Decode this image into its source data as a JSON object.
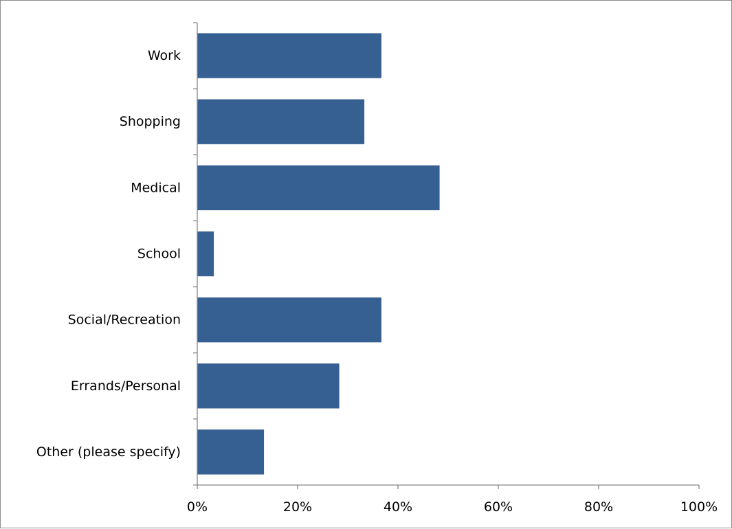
{
  "chart_data": {
    "type": "bar",
    "orientation": "horizontal",
    "categories": [
      "Work",
      "Shopping",
      "Medical",
      "School",
      "Social/Recreation",
      "Errands/Personal",
      "Other (please specify)"
    ],
    "values": [
      36.7,
      33.3,
      48.3,
      3.3,
      36.7,
      28.3,
      13.3
    ],
    "xlim": [
      0,
      100
    ],
    "x_ticks": [
      "0%",
      "20%",
      "40%",
      "60%",
      "80%",
      "100%"
    ],
    "x_tick_values": [
      0,
      20,
      40,
      60,
      80,
      100
    ],
    "title": "",
    "xlabel": "",
    "ylabel": "",
    "grid": false,
    "legend": "none",
    "bar_color": "#376092",
    "axis_color": "#868686"
  }
}
